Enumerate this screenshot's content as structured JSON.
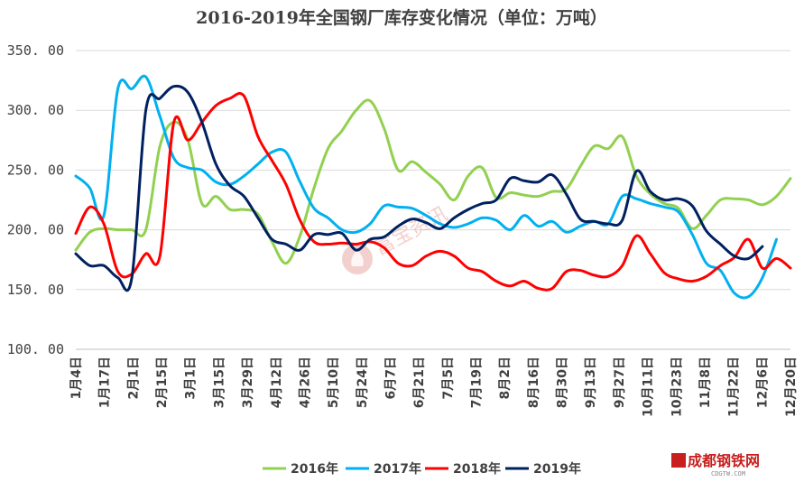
{
  "chart_data": {
    "type": "line",
    "title": "2016-2019年全国钢厂库存变化情况（单位：万吨）",
    "unit": "万吨",
    "xlabel": "",
    "ylabel": "",
    "ylim": [
      100,
      350
    ],
    "yticks": [
      "100. 00",
      "150. 00",
      "200. 00",
      "250. 00",
      "300. 00",
      "350. 00"
    ],
    "ytick_values": [
      100,
      150,
      200,
      250,
      300,
      350
    ],
    "x_range": [
      0,
      51
    ],
    "x_tick_labels": [
      "1月4日",
      "1月17日",
      "2月1日",
      "2月15日",
      "3月1日",
      "3月15日",
      "3月29日",
      "4月12日",
      "4月26日",
      "5月10日",
      "5月24日",
      "6月7日",
      "6月21日",
      "7月5日",
      "7月19日",
      "8月2日",
      "8月16日",
      "8月30日",
      "9月13日",
      "9月27日",
      "10月11日",
      "10月23日",
      "11月8日",
      "11月22日",
      "12月6日",
      "12月20日"
    ],
    "grid": "horizontal",
    "legend_position": "bottom",
    "series": [
      {
        "name": "2016年",
        "color": "#92d050",
        "x": [
          0,
          1,
          2,
          3,
          4,
          5,
          6,
          7,
          8,
          9,
          10,
          11,
          12,
          13,
          14,
          15,
          16,
          17,
          18,
          19,
          20,
          21,
          22,
          23,
          24,
          25,
          26,
          27,
          28,
          29,
          30,
          31,
          32,
          33,
          34,
          35,
          36,
          37,
          38,
          39,
          40,
          41,
          42,
          43,
          44,
          45,
          46,
          47,
          48,
          49,
          50,
          51
        ],
        "values": [
          183,
          198,
          201,
          200,
          200,
          200,
          270,
          290,
          275,
          222,
          228,
          217,
          217,
          213,
          190,
          172,
          195,
          235,
          268,
          283,
          300,
          308,
          285,
          250,
          257,
          248,
          238,
          225,
          245,
          252,
          227,
          231,
          229,
          228,
          232,
          234,
          253,
          270,
          268,
          278,
          245,
          230,
          222,
          218,
          201,
          212,
          225,
          226,
          225,
          221,
          228,
          243
        ]
      },
      {
        "name": "2017年",
        "color": "#00b0f0",
        "x": [
          0,
          1,
          2,
          3,
          4,
          5,
          6,
          7,
          8,
          9,
          10,
          11,
          12,
          13,
          14,
          15,
          16,
          17,
          18,
          19,
          20,
          21,
          22,
          23,
          24,
          25,
          26,
          27,
          28,
          29,
          30,
          31,
          32,
          33,
          34,
          35,
          36,
          37,
          38,
          39,
          40,
          41,
          42,
          43,
          44,
          45,
          46,
          47,
          48,
          49,
          50
        ],
        "values": [
          245,
          235,
          212,
          318,
          318,
          328,
          295,
          260,
          252,
          250,
          240,
          238,
          245,
          255,
          265,
          265,
          240,
          218,
          210,
          200,
          198,
          205,
          220,
          219,
          218,
          212,
          205,
          202,
          205,
          210,
          208,
          200,
          212,
          203,
          207,
          198,
          203,
          207,
          205,
          228,
          226,
          222,
          219,
          215,
          196,
          172,
          166,
          147,
          144,
          160,
          192
        ]
      },
      {
        "name": "2018年",
        "color": "#ff0000",
        "x": [
          0,
          1,
          2,
          3,
          4,
          5,
          6,
          7,
          8,
          9,
          10,
          11,
          12,
          13,
          14,
          15,
          16,
          17,
          18,
          19,
          20,
          21,
          22,
          23,
          24,
          25,
          26,
          27,
          28,
          29,
          30,
          31,
          32,
          33,
          34,
          35,
          36,
          37,
          38,
          39,
          40,
          41,
          42,
          43,
          44,
          45,
          46,
          47,
          48,
          49,
          50,
          51
        ],
        "values": [
          197,
          219,
          205,
          165,
          163,
          180,
          178,
          290,
          275,
          290,
          304,
          310,
          312,
          278,
          258,
          238,
          208,
          190,
          188,
          189,
          188,
          190,
          185,
          172,
          170,
          178,
          182,
          178,
          168,
          165,
          157,
          153,
          157,
          151,
          151,
          165,
          166,
          162,
          161,
          170,
          195,
          180,
          164,
          159,
          157,
          161,
          170,
          177,
          192,
          168,
          176,
          168
        ]
      },
      {
        "name": "2019年",
        "color": "#002060",
        "x": [
          0,
          1,
          2,
          3,
          4,
          5,
          6,
          7,
          8,
          9,
          10,
          11,
          12,
          13,
          14,
          15,
          16,
          17,
          18,
          19,
          20,
          21,
          22,
          23,
          24,
          25,
          26,
          27,
          28,
          29,
          30,
          31,
          32,
          33,
          34,
          35,
          36,
          37,
          38,
          39,
          40,
          41,
          42,
          43,
          44,
          45,
          46,
          47,
          48,
          49
        ],
        "values": [
          180,
          170,
          170,
          160,
          160,
          300,
          310,
          320,
          315,
          290,
          255,
          237,
          228,
          210,
          192,
          188,
          183,
          196,
          196,
          197,
          183,
          192,
          194,
          203,
          209,
          206,
          201,
          210,
          217,
          222,
          225,
          243,
          241,
          240,
          246,
          230,
          209,
          207,
          205,
          208,
          249,
          232,
          225,
          226,
          220,
          199,
          188,
          178,
          176,
          186
        ]
      }
    ]
  },
  "watermark": {
    "text": "富宝资讯"
  },
  "logo": {
    "main": "成都钢铁网",
    "sub": "CDGTW.COM"
  }
}
